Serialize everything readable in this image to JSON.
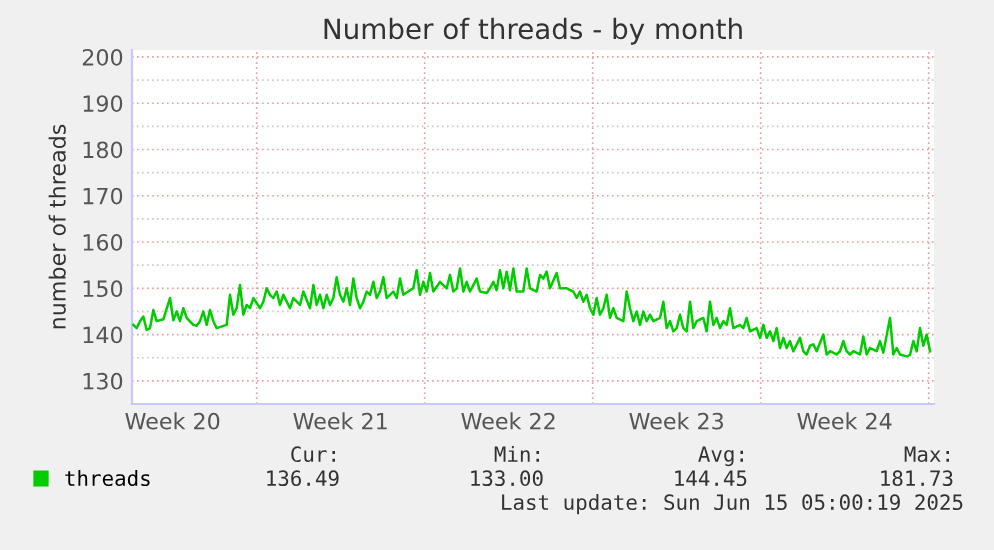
{
  "chart_data": {
    "type": "line",
    "title": "Number of threads - by month",
    "ylabel": "number of threads",
    "x": [
      "2025-05-13T20:40",
      "2025-05-14T00:00",
      "2025-05-14T03:20",
      "2025-05-14T06:40",
      "2025-05-14T10:00",
      "2025-05-14T13:20",
      "2025-05-14T16:40",
      "2025-05-14T20:00",
      "2025-05-15T02:40",
      "2025-05-15T09:20",
      "2025-05-15T12:40",
      "2025-05-15T16:00",
      "2025-05-15T19:20",
      "2025-05-15T22:40",
      "2025-05-16T02:00",
      "2025-05-16T08:40",
      "2025-05-16T12:00",
      "2025-05-16T15:20",
      "2025-05-16T18:40",
      "2025-05-16T22:00",
      "2025-05-17T01:20",
      "2025-05-17T04:40",
      "2025-05-17T08:00",
      "2025-05-17T18:00",
      "2025-05-17T21:20",
      "2025-05-18T00:40",
      "2025-05-18T04:00",
      "2025-05-18T07:20",
      "2025-05-18T10:40",
      "2025-05-18T14:00",
      "2025-05-18T17:20",
      "2025-05-18T20:40",
      "2025-05-19T03:20",
      "2025-05-19T06:40",
      "2025-05-19T10:00",
      "2025-05-19T13:20",
      "2025-05-19T16:40",
      "2025-05-19T20:00",
      "2025-05-19T23:20",
      "2025-05-20T02:40",
      "2025-05-20T09:20",
      "2025-05-20T12:40",
      "2025-05-20T19:20",
      "2025-05-20T22:40",
      "2025-05-21T05:20",
      "2025-05-21T08:40",
      "2025-05-21T12:00",
      "2025-05-21T15:20",
      "2025-05-21T18:40",
      "2025-05-21T22:00",
      "2025-05-22T01:20",
      "2025-05-22T04:40",
      "2025-05-22T08:00",
      "2025-05-22T11:20",
      "2025-05-22T14:40",
      "2025-05-22T18:00",
      "2025-05-22T21:20",
      "2025-05-23T00:40",
      "2025-05-23T04:00",
      "2025-05-23T07:20",
      "2025-05-23T10:40",
      "2025-05-23T14:00",
      "2025-05-23T17:20",
      "2025-05-23T20:40",
      "2025-05-24T00:00",
      "2025-05-24T03:20",
      "2025-05-24T06:40",
      "2025-05-24T10:00",
      "2025-05-24T16:40",
      "2025-05-24T20:00",
      "2025-05-24T23:20",
      "2025-05-25T02:40",
      "2025-05-25T09:20",
      "2025-05-25T12:40",
      "2025-05-25T16:00",
      "2025-05-25T19:20",
      "2025-05-25T22:40",
      "2025-05-26T02:00",
      "2025-05-26T05:20",
      "2025-05-26T08:40",
      "2025-05-26T15:20",
      "2025-05-26T22:00",
      "2025-05-27T01:20",
      "2025-05-27T04:40",
      "2025-05-27T08:00",
      "2025-05-27T11:20",
      "2025-05-27T14:40",
      "2025-05-27T18:00",
      "2025-05-27T21:20",
      "2025-05-28T04:00",
      "2025-05-28T07:20",
      "2025-05-28T14:00",
      "2025-05-28T17:20",
      "2025-05-28T20:40",
      "2025-05-29T00:00",
      "2025-05-29T03:20",
      "2025-05-29T06:40",
      "2025-05-29T10:00",
      "2025-05-29T13:20",
      "2025-05-29T16:40",
      "2025-05-29T20:00",
      "2025-05-30T02:40",
      "2025-05-30T06:00",
      "2025-05-30T09:20",
      "2025-05-30T16:00",
      "2025-05-30T19:20",
      "2025-05-30T22:40",
      "2025-05-31T02:00",
      "2025-05-31T05:20",
      "2025-05-31T12:00",
      "2025-05-31T15:20",
      "2025-05-31T22:00",
      "2025-06-01T04:40",
      "2025-06-01T08:00",
      "2025-06-01T11:20",
      "2025-06-01T14:40",
      "2025-06-01T18:00",
      "2025-06-01T21:20",
      "2025-06-02T00:40",
      "2025-06-02T04:00",
      "2025-06-02T07:20",
      "2025-06-02T10:40",
      "2025-06-02T14:00",
      "2025-06-02T17:20",
      "2025-06-02T20:40",
      "2025-06-03T00:00",
      "2025-06-03T06:40",
      "2025-06-03T10:00",
      "2025-06-03T13:20",
      "2025-06-03T16:40",
      "2025-06-03T20:00",
      "2025-06-03T23:20",
      "2025-06-04T02:40",
      "2025-06-04T06:00",
      "2025-06-04T09:20",
      "2025-06-04T12:40",
      "2025-06-04T19:20",
      "2025-06-04T22:40",
      "2025-06-05T02:00",
      "2025-06-05T05:20",
      "2025-06-05T08:40",
      "2025-06-05T12:00",
      "2025-06-05T15:20",
      "2025-06-05T18:40",
      "2025-06-05T22:00",
      "2025-06-06T01:20",
      "2025-06-06T04:40",
      "2025-06-06T08:00",
      "2025-06-06T14:40",
      "2025-06-06T18:00",
      "2025-06-06T21:20",
      "2025-06-07T00:40",
      "2025-06-07T04:00",
      "2025-06-07T07:20",
      "2025-06-07T10:40",
      "2025-06-07T14:00",
      "2025-06-07T17:20",
      "2025-06-07T20:40",
      "2025-06-08T03:20",
      "2025-06-08T06:40",
      "2025-06-08T10:00",
      "2025-06-08T13:20",
      "2025-06-08T20:00",
      "2025-06-08T23:20",
      "2025-06-09T02:40",
      "2025-06-09T06:00",
      "2025-06-09T09:20",
      "2025-06-09T12:40",
      "2025-06-09T16:00",
      "2025-06-09T19:20",
      "2025-06-09T22:40",
      "2025-06-10T02:00",
      "2025-06-10T05:20",
      "2025-06-10T08:40",
      "2025-06-10T15:20",
      "2025-06-10T18:40",
      "2025-06-10T22:00",
      "2025-06-11T01:20",
      "2025-06-11T04:40",
      "2025-06-11T08:00",
      "2025-06-11T14:40",
      "2025-06-11T18:00",
      "2025-06-11T21:20",
      "2025-06-12T04:00",
      "2025-06-12T07:20",
      "2025-06-12T10:40",
      "2025-06-12T14:00",
      "2025-06-12T17:20",
      "2025-06-12T20:40",
      "2025-06-13T03:20",
      "2025-06-13T06:40",
      "2025-06-13T10:00",
      "2025-06-13T13:20",
      "2025-06-13T20:00",
      "2025-06-13T23:20",
      "2025-06-14T02:40",
      "2025-06-14T09:20",
      "2025-06-14T12:40",
      "2025-06-14T16:00",
      "2025-06-14T19:20",
      "2025-06-15T02:00",
      "2025-06-15T05:20",
      "2025-06-15T08:40",
      "2025-06-15T12:00",
      "2025-06-15T15:20",
      "2025-06-15T18:40",
      "2025-06-15T22:00",
      "2025-06-16T01:20"
    ],
    "series": [
      {
        "name": "threads",
        "color": "#00cc00",
        "values": [
          142.1,
          141.4,
          142.9,
          143.9,
          141.0,
          141.4,
          145.3,
          142.9,
          143.3,
          147.9,
          143.1,
          145.0,
          142.9,
          145.7,
          143.6,
          142.1,
          141.9,
          142.9,
          145.0,
          142.1,
          145.3,
          142.9,
          141.4,
          142.1,
          148.6,
          144.3,
          145.7,
          150.7,
          144.3,
          146.4,
          145.7,
          147.9,
          145.7,
          147.1,
          150.0,
          148.6,
          147.9,
          149.3,
          146.4,
          148.6,
          145.7,
          147.9,
          146.4,
          149.3,
          145.7,
          150.7,
          146.4,
          148.6,
          145.7,
          148.6,
          146.4,
          147.9,
          152.4,
          148.6,
          147.1,
          150.0,
          146.4,
          152.1,
          147.9,
          145.7,
          147.1,
          149.3,
          148.6,
          151.4,
          147.9,
          149.3,
          152.4,
          147.9,
          149.3,
          147.9,
          152.1,
          148.6,
          149.6,
          150.0,
          153.9,
          148.6,
          151.4,
          149.3,
          153.3,
          149.3,
          151.4,
          150.0,
          152.9,
          149.3,
          150.0,
          154.3,
          149.3,
          151.4,
          149.3,
          152.1,
          149.3,
          149.0,
          150.0,
          151.4,
          149.6,
          153.9,
          150.0,
          153.6,
          149.6,
          154.3,
          149.3,
          149.3,
          154.3,
          150.0,
          149.3,
          152.9,
          152.1,
          153.6,
          150.0,
          153.3,
          150.0,
          150.0,
          149.3,
          147.9,
          149.3,
          147.1,
          148.6,
          145.7,
          144.3,
          147.9,
          144.3,
          145.7,
          148.6,
          143.6,
          145.7,
          143.6,
          142.9,
          149.3,
          145.7,
          142.9,
          145.0,
          142.1,
          145.0,
          142.9,
          144.3,
          142.9,
          143.6,
          147.1,
          141.4,
          142.9,
          140.7,
          141.4,
          144.3,
          141.4,
          140.7,
          147.1,
          141.4,
          142.9,
          143.6,
          140.7,
          147.1,
          142.1,
          143.6,
          141.4,
          142.9,
          142.1,
          145.7,
          141.4,
          142.1,
          141.4,
          143.6,
          140.7,
          141.4,
          139.3,
          142.1,
          139.3,
          140.7,
          138.6,
          141.4,
          137.1,
          139.3,
          137.1,
          138.6,
          136.4,
          139.3,
          136.4,
          135.7,
          137.6,
          137.9,
          136.4,
          140.0,
          135.7,
          136.4,
          135.7,
          136.4,
          138.6,
          136.4,
          135.7,
          136.4,
          135.7,
          139.6,
          135.7,
          137.1,
          136.4,
          138.6,
          136.1,
          143.6,
          135.7,
          137.1,
          135.7,
          135.3,
          135.6,
          138.6,
          136.4,
          141.4,
          137.6,
          140.0,
          136.4
        ]
      }
    ],
    "xlim": [
      "2025-05-13T19:20",
      "2025-06-16T05:20"
    ],
    "xticks": [
      {
        "value": "2025-05-15T12:00",
        "label": "Week 20"
      },
      {
        "value": "2025-05-19T00:00",
        "label": null
      },
      {
        "value": "2025-05-22T12:00",
        "label": "Week 21"
      },
      {
        "value": "2025-05-26T00:00",
        "label": null
      },
      {
        "value": "2025-05-29T12:00",
        "label": "Week 22"
      },
      {
        "value": "2025-06-02T00:00",
        "label": null
      },
      {
        "value": "2025-06-05T12:00",
        "label": "Week 23"
      },
      {
        "value": "2025-06-09T00:00",
        "label": null
      },
      {
        "value": "2025-06-12T12:00",
        "label": "Week 24"
      },
      {
        "value": "2025-06-16T00:00",
        "label": null
      }
    ],
    "ylim": [
      125,
      201.5
    ],
    "yticks": [
      {
        "value": 125,
        "label": null
      },
      130,
      {
        "value": 135,
        "label": null
      },
      140,
      {
        "value": 145,
        "label": null
      },
      150,
      {
        "value": 155,
        "label": null
      },
      160,
      {
        "value": 165,
        "label": null
      },
      170,
      {
        "value": 175,
        "label": null
      },
      180,
      {
        "value": 185,
        "label": null
      },
      190,
      {
        "value": 195,
        "label": null
      },
      200
    ],
    "grid": true,
    "legend": "bottom left",
    "annotations": [
      "Cur:",
      "Min:",
      "Avg:",
      "Max:",
      "136.49",
      "133.00",
      "144.45",
      "181.73",
      "Last update: Sun Jun 15 05:00:19 2025"
    ]
  }
}
